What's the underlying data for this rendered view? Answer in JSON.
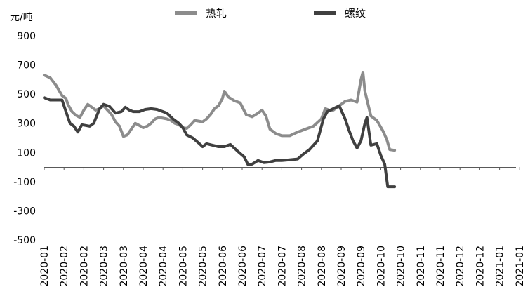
{
  "chart_data": {
    "type": "line",
    "ylabel": "元/吨",
    "ylim": [
      -500,
      900
    ],
    "yticks": [
      900,
      700,
      500,
      300,
      100,
      -100,
      -300,
      -500
    ],
    "grid": false,
    "legend_position": "top",
    "x_tick_labels": [
      "2020-01",
      "2020-02",
      "2020-02",
      "2020-03",
      "2020-03",
      "2020-04",
      "2020-04",
      "2020-05",
      "2020-05",
      "2020-06",
      "2020-06",
      "2020-07",
      "2020-07",
      "2020-08",
      "2020-08",
      "2020-09",
      "2020-09",
      "2020-10",
      "2020-10",
      "2020-11",
      "2020-11",
      "2020-12",
      "2020-12",
      "2021-01",
      "2021-01"
    ],
    "series": [
      {
        "name": "热轧",
        "color": "#8c8c8c",
        "points": [
          [
            0,
            630
          ],
          [
            0.3,
            612
          ],
          [
            0.6,
            560
          ],
          [
            0.9,
            490
          ],
          [
            1.1,
            470
          ],
          [
            1.2,
            430
          ],
          [
            1.4,
            380
          ],
          [
            1.6,
            355
          ],
          [
            1.8,
            340
          ],
          [
            2.0,
            390
          ],
          [
            2.2,
            430
          ],
          [
            2.4,
            410
          ],
          [
            2.6,
            390
          ],
          [
            2.8,
            400
          ],
          [
            3.0,
            420
          ],
          [
            3.2,
            390
          ],
          [
            3.4,
            360
          ],
          [
            3.6,
            310
          ],
          [
            3.8,
            280
          ],
          [
            4.0,
            210
          ],
          [
            4.2,
            220
          ],
          [
            4.4,
            260
          ],
          [
            4.6,
            300
          ],
          [
            4.8,
            285
          ],
          [
            5.0,
            270
          ],
          [
            5.2,
            280
          ],
          [
            5.4,
            300
          ],
          [
            5.6,
            330
          ],
          [
            5.8,
            340
          ],
          [
            6.0,
            335
          ],
          [
            6.2,
            330
          ],
          [
            6.4,
            320
          ],
          [
            6.6,
            300
          ],
          [
            6.8,
            290
          ],
          [
            7.0,
            270
          ],
          [
            7.2,
            265
          ],
          [
            7.4,
            290
          ],
          [
            7.6,
            320
          ],
          [
            7.8,
            315
          ],
          [
            8.0,
            310
          ],
          [
            8.2,
            330
          ],
          [
            8.4,
            360
          ],
          [
            8.6,
            400
          ],
          [
            8.8,
            420
          ],
          [
            9.0,
            470
          ],
          [
            9.1,
            520
          ],
          [
            9.3,
            480
          ],
          [
            9.6,
            455
          ],
          [
            9.9,
            440
          ],
          [
            10.2,
            360
          ],
          [
            10.5,
            345
          ],
          [
            10.8,
            370
          ],
          [
            11.0,
            390
          ],
          [
            11.2,
            350
          ],
          [
            11.4,
            260
          ],
          [
            11.7,
            230
          ],
          [
            12.0,
            215
          ],
          [
            12.4,
            215
          ],
          [
            12.8,
            240
          ],
          [
            13.2,
            260
          ],
          [
            13.6,
            280
          ],
          [
            14.0,
            330
          ],
          [
            14.2,
            400
          ],
          [
            14.4,
            390
          ],
          [
            14.6,
            390
          ],
          [
            14.8,
            410
          ],
          [
            15.0,
            430
          ],
          [
            15.2,
            450
          ],
          [
            15.5,
            460
          ],
          [
            15.8,
            445
          ],
          [
            16.0,
            600
          ],
          [
            16.1,
            650
          ],
          [
            16.2,
            520
          ],
          [
            16.5,
            350
          ],
          [
            16.8,
            320
          ],
          [
            17.1,
            250
          ],
          [
            17.3,
            190
          ],
          [
            17.45,
            120
          ],
          [
            17.7,
            115
          ]
        ]
      },
      {
        "name": "螺纹",
        "color": "#404040",
        "points": [
          [
            0,
            475
          ],
          [
            0.3,
            460
          ],
          [
            0.6,
            460
          ],
          [
            0.9,
            460
          ],
          [
            1.1,
            380
          ],
          [
            1.3,
            300
          ],
          [
            1.5,
            280
          ],
          [
            1.7,
            240
          ],
          [
            1.9,
            290
          ],
          [
            2.1,
            285
          ],
          [
            2.3,
            280
          ],
          [
            2.5,
            300
          ],
          [
            2.8,
            400
          ],
          [
            3.0,
            430
          ],
          [
            3.3,
            415
          ],
          [
            3.6,
            370
          ],
          [
            3.9,
            380
          ],
          [
            4.1,
            410
          ],
          [
            4.3,
            390
          ],
          [
            4.5,
            380
          ],
          [
            4.8,
            380
          ],
          [
            5.1,
            395
          ],
          [
            5.4,
            400
          ],
          [
            5.7,
            395
          ],
          [
            6.0,
            380
          ],
          [
            6.2,
            370
          ],
          [
            6.5,
            330
          ],
          [
            6.8,
            300
          ],
          [
            7.0,
            270
          ],
          [
            7.2,
            220
          ],
          [
            7.5,
            200
          ],
          [
            7.8,
            165
          ],
          [
            8.0,
            140
          ],
          [
            8.2,
            160
          ],
          [
            8.5,
            150
          ],
          [
            8.8,
            140
          ],
          [
            9.1,
            140
          ],
          [
            9.4,
            155
          ],
          [
            9.8,
            105
          ],
          [
            10.1,
            70
          ],
          [
            10.3,
            15
          ],
          [
            10.5,
            20
          ],
          [
            10.8,
            45
          ],
          [
            11.1,
            30
          ],
          [
            11.4,
            35
          ],
          [
            11.7,
            45
          ],
          [
            12.0,
            45
          ],
          [
            12.4,
            50
          ],
          [
            12.8,
            55
          ],
          [
            13.1,
            90
          ],
          [
            13.4,
            120
          ],
          [
            13.8,
            180
          ],
          [
            14.1,
            330
          ],
          [
            14.3,
            380
          ],
          [
            14.6,
            400
          ],
          [
            14.9,
            420
          ],
          [
            15.2,
            330
          ],
          [
            15.4,
            250
          ],
          [
            15.6,
            180
          ],
          [
            15.8,
            130
          ],
          [
            16.0,
            180
          ],
          [
            16.2,
            300
          ],
          [
            16.3,
            340
          ],
          [
            16.5,
            150
          ],
          [
            16.8,
            160
          ],
          [
            17.0,
            80
          ],
          [
            17.2,
            20
          ],
          [
            17.35,
            -135
          ],
          [
            17.7,
            -135
          ]
        ]
      }
    ]
  }
}
